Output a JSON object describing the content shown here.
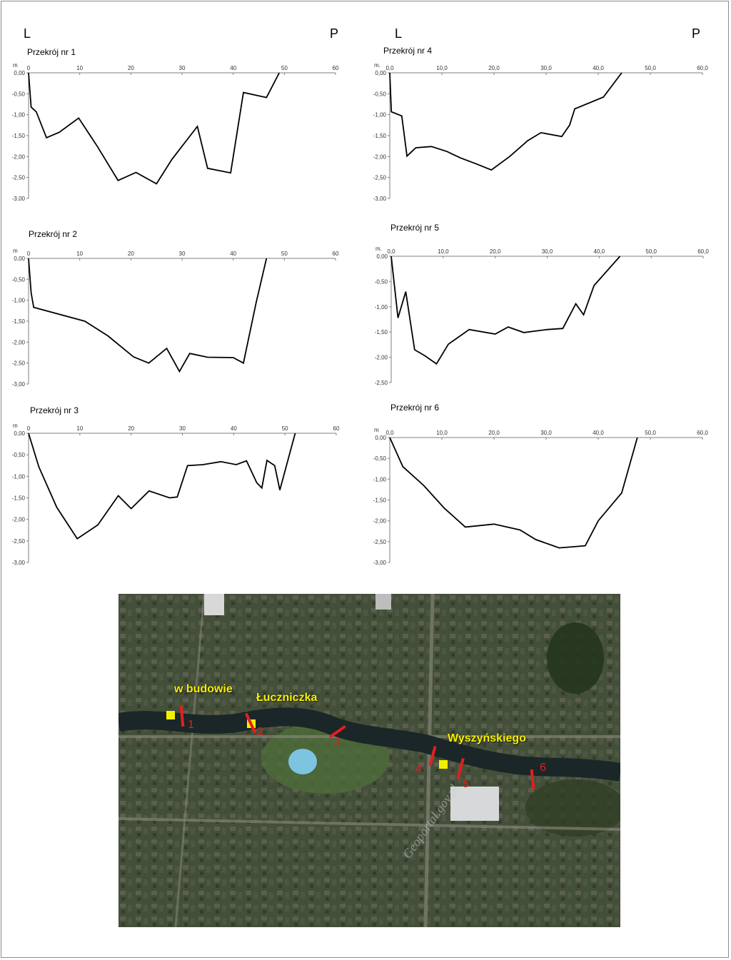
{
  "page": {
    "colors": {
      "line": "#000000",
      "axis": "#7f7f7f",
      "marker_red": "#e02020",
      "marker_yellow": "#f3f000"
    }
  },
  "bank_labels": {
    "left": "L",
    "right": "P"
  },
  "chart_data": [
    {
      "type": "line",
      "title": "Przekrój nr 1",
      "ylabel": "m",
      "xlim": [
        0,
        60
      ],
      "ylim": [
        -3,
        0
      ],
      "x_ticks": [
        "0",
        "10",
        "20",
        "30",
        "40",
        "50",
        "60"
      ],
      "y_ticks": [
        "0,00",
        "-0,50",
        "-1,00",
        "-1,50",
        "-2,00",
        "-2,50",
        "-3,00"
      ],
      "series": [
        {
          "x": [
            0,
            0.5,
            1.5,
            3.5,
            6,
            9.8,
            13.5,
            17.5,
            21,
            25,
            28,
            33,
            35,
            39.5,
            42,
            46.5,
            49
          ],
          "y": [
            0,
            -0.82,
            -0.93,
            -1.55,
            -1.42,
            -1.08,
            -1.77,
            -2.57,
            -2.38,
            -2.65,
            -2.07,
            -1.28,
            -2.28,
            -2.39,
            -0.47,
            -0.59,
            0
          ]
        }
      ]
    },
    {
      "type": "line",
      "title": "Przekrój nr 2",
      "ylabel": "m",
      "xlim": [
        0,
        60
      ],
      "ylim": [
        -3,
        0
      ],
      "x_ticks": [
        "0",
        "10",
        "20",
        "30",
        "40",
        "50",
        "60"
      ],
      "y_ticks": [
        "0,00",
        "-0,50",
        "-1,00",
        "-1,50",
        "-2,00",
        "-2,50",
        "-3,00"
      ],
      "series": [
        {
          "x": [
            0,
            0.5,
            1,
            11,
            15.5,
            20.5,
            23.5,
            27,
            29.5,
            31.5,
            35,
            40,
            42,
            44.5,
            46.5
          ],
          "y": [
            0,
            -0.82,
            -1.17,
            -1.5,
            -1.85,
            -2.35,
            -2.5,
            -2.15,
            -2.7,
            -2.27,
            -2.36,
            -2.37,
            -2.5,
            -1.05,
            0
          ]
        }
      ]
    },
    {
      "type": "line",
      "title": "Przekrój nr 3",
      "ylabel": "m",
      "xlim": [
        0,
        60
      ],
      "ylim": [
        -3,
        0
      ],
      "x_ticks": [
        "0",
        "10",
        "20",
        "30",
        "40",
        "50",
        "60"
      ],
      "y_ticks": [
        "0,00",
        "-0,50",
        "-1,00",
        "-1,50",
        "-2,00",
        "-2,50",
        "-3,00"
      ],
      "series": [
        {
          "x": [
            0,
            2,
            5.5,
            9.5,
            13.5,
            17.5,
            20,
            23.5,
            27.5,
            29,
            31,
            34,
            37.5,
            40.5,
            42.5,
            44.5,
            45.5,
            46.5,
            48,
            49,
            52
          ],
          "y": [
            0,
            -0.78,
            -1.72,
            -2.45,
            -2.13,
            -1.45,
            -1.75,
            -1.34,
            -1.5,
            -1.48,
            -0.75,
            -0.73,
            -0.66,
            -0.73,
            -0.64,
            -1.15,
            -1.27,
            -0.63,
            -0.75,
            -1.32,
            0
          ]
        }
      ]
    },
    {
      "type": "line",
      "title": "Przekrój nr 4",
      "ylabel": "m.",
      "xlim": [
        0,
        60
      ],
      "ylim": [
        -3,
        0
      ],
      "x_ticks": [
        "0,0",
        "10,0",
        "20,0",
        "30,0",
        "40,0",
        "50,0",
        "60,0"
      ],
      "y_ticks": [
        "0,00",
        "-0,50",
        "-1,00",
        "-1,50",
        "-2,00",
        "-2,50",
        "-3,00"
      ],
      "series": [
        {
          "x": [
            0,
            0.3,
            2.3,
            3.3,
            5,
            8,
            11,
            13.5,
            16.5,
            19.5,
            23,
            26.5,
            29,
            33,
            34.5,
            35.5,
            41,
            44.5
          ],
          "y": [
            0,
            -0.93,
            -1.03,
            -1.99,
            -1.79,
            -1.76,
            -1.88,
            -2.03,
            -2.17,
            -2.32,
            -2.0,
            -1.62,
            -1.43,
            -1.52,
            -1.25,
            -0.86,
            -0.58,
            0
          ]
        }
      ]
    },
    {
      "type": "line",
      "title": "Przekrój nr 5",
      "ylabel": "m.",
      "xlim": [
        0,
        60
      ],
      "ylim": [
        -2.5,
        0
      ],
      "x_ticks": [
        "0,0",
        "10,0",
        "20,0",
        "30,0",
        "40,0",
        "50,0",
        "60,0"
      ],
      "y_ticks": [
        "0,00",
        "-0,50",
        "-1,00",
        "-1,50",
        "-2,00",
        "-2,50"
      ],
      "series": [
        {
          "x": [
            0,
            1.3,
            2.8,
            4.5,
            6.5,
            8.7,
            11,
            15,
            20,
            22.5,
            25.5,
            30,
            33,
            35.5,
            37,
            39,
            44
          ],
          "y": [
            0,
            -1.22,
            -0.7,
            -1.85,
            -1.97,
            -2.13,
            -1.74,
            -1.45,
            -1.54,
            -1.4,
            -1.51,
            -1.45,
            -1.43,
            -0.94,
            -1.16,
            -0.58,
            0
          ]
        }
      ]
    },
    {
      "type": "line",
      "title": "Przekrój nr 6",
      "ylabel": "m",
      "xlim": [
        0,
        60
      ],
      "ylim": [
        -3,
        0
      ],
      "x_ticks": [
        "0,0",
        "10,0",
        "20,0",
        "30,0",
        "40,0",
        "50,0",
        "60,0"
      ],
      "y_ticks": [
        "0,00",
        "-0,50",
        "-1,00",
        "-1,50",
        "-2,00",
        "-2,50",
        "-3,00"
      ],
      "series": [
        {
          "x": [
            0,
            2.5,
            6.5,
            10.5,
            14.5,
            20,
            25,
            28,
            32.5,
            37.5,
            40,
            44.5,
            47.5
          ],
          "y": [
            0,
            -0.7,
            -1.15,
            -1.7,
            -2.15,
            -2.08,
            -2.22,
            -2.45,
            -2.65,
            -2.6,
            -2.0,
            -1.33,
            0
          ]
        }
      ]
    }
  ],
  "map": {
    "labels": [
      "w budowie",
      "Łuczniczka",
      "Wyszyńskiego"
    ],
    "section_numbers": [
      "1",
      "2",
      "3",
      "4",
      "5",
      "6"
    ],
    "watermark": "Geoportal.gov.pl"
  }
}
